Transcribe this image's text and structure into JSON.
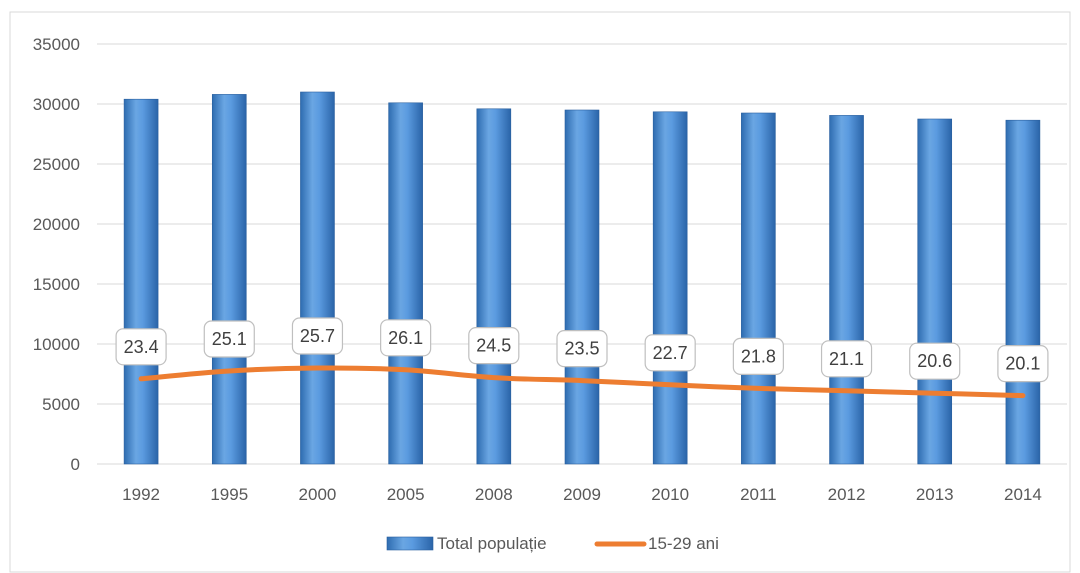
{
  "chart_data": {
    "type": "bar",
    "categories": [
      "1992",
      "1995",
      "2000",
      "2005",
      "2008",
      "2009",
      "2010",
      "2011",
      "2012",
      "2013",
      "2014"
    ],
    "series": [
      {
        "name": "Total populație",
        "type": "bar",
        "color": "#4f8fd3",
        "values": [
          30400,
          30800,
          31000,
          30100,
          29600,
          29500,
          29350,
          29250,
          29050,
          28750,
          28650
        ]
      },
      {
        "name": "15-29 ani",
        "type": "line",
        "color": "#ed7d31",
        "values": [
          7100,
          7750,
          8000,
          7850,
          7200,
          6950,
          6600,
          6300,
          6100,
          5900,
          5700
        ],
        "data_labels": [
          "23.4",
          "25.1",
          "25.7",
          "26.1",
          "24.5",
          "23.5",
          "22.7",
          "21.8",
          "21.1",
          "20.6",
          "20.1"
        ]
      }
    ],
    "yticks": [
      "0",
      "5000",
      "10000",
      "15000",
      "20000",
      "25000",
      "30000",
      "35000"
    ],
    "ylim": [
      0,
      35000
    ],
    "grid": true,
    "legend_position": "bottom"
  }
}
